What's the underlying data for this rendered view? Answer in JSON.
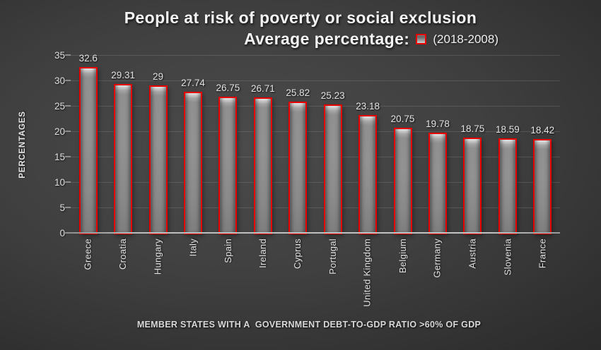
{
  "title": {
    "line1": "People at risk of poverty or social exclusion",
    "line2_prefix": "Average percentage:",
    "legend_label": "(2018-2008)"
  },
  "axes": {
    "y_title": "PERCENTAGES",
    "x_title": "MEMBER STATES WITH A  GOVERNMENT DEBT-TO-GDP RATIO >60% OF GDP"
  },
  "chart_data": {
    "type": "bar",
    "title": "People at risk of poverty or social exclusion",
    "subtitle": "Average percentage: (2018-2008)",
    "categories": [
      "Greece",
      "Croatia",
      "Hungary",
      "Italy",
      "Spain",
      "Ireland",
      "Cyprus",
      "Portugal",
      "United Kingdom",
      "Belgium",
      "Germany",
      "Austria",
      "Slovenia",
      "France"
    ],
    "values": [
      32.6,
      29.31,
      29,
      27.74,
      26.75,
      26.71,
      25.82,
      25.23,
      23.18,
      20.75,
      19.78,
      18.75,
      18.59,
      18.42
    ],
    "value_labels": [
      "32.6",
      "29.31",
      "29",
      "27.74",
      "26.75",
      "26.71",
      "25.82",
      "25.23",
      "23.18",
      "20.75",
      "19.78",
      "18.75",
      "18.59",
      "18.42"
    ],
    "series": [
      {
        "name": "(2018-2008)",
        "values": [
          32.6,
          29.31,
          29,
          27.74,
          26.75,
          26.71,
          25.82,
          25.23,
          23.18,
          20.75,
          19.78,
          18.75,
          18.59,
          18.42
        ]
      }
    ],
    "xlabel": "MEMBER STATES WITH A  GOVERNMENT DEBT-TO-GDP RATIO >60% OF GDP",
    "ylabel": "PERCENTAGES",
    "ylim": [
      0,
      35
    ],
    "yticks": [
      0,
      5,
      10,
      15,
      20,
      25,
      30,
      35
    ],
    "grid": true,
    "legend": {
      "label": "(2018-2008)",
      "position": "in-title-right"
    },
    "colors": {
      "bar_fill": "#8f8f8f",
      "bar_border": "#e60000",
      "background_center": "#4b4b4b",
      "background_edge": "#202020",
      "text": "#e3e3e3",
      "axis_line": "#bdbdbd"
    }
  }
}
